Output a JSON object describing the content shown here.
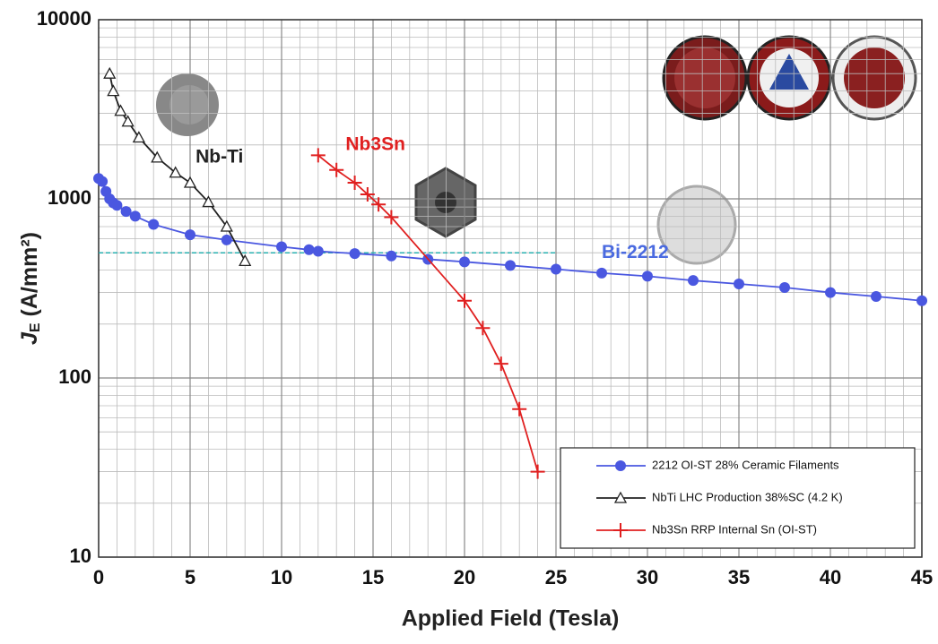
{
  "chart_data": {
    "type": "line",
    "xlabel": "Applied Field (Tesla)",
    "ylabel": {
      "main": "J",
      "sub": "E",
      "rest": " (A/mm²)"
    },
    "xlim": [
      0,
      45
    ],
    "xticks": [
      0,
      5,
      10,
      15,
      20,
      25,
      30,
      35,
      40,
      45
    ],
    "ylim": [
      10,
      10000
    ],
    "yticks": [
      10,
      100,
      1000,
      10000
    ],
    "log_y": true,
    "grid": true,
    "minor_grid": true,
    "legend": "lower right",
    "series": [
      {
        "name": "2212 OI-ST 28% Ceramic Filaments",
        "color": "#4a57e0",
        "marker": "circle",
        "x": [
          0,
          0.2,
          0.4,
          0.6,
          0.8,
          1,
          1.5,
          2,
          3,
          5,
          7,
          10,
          11.5,
          12,
          14,
          16,
          18,
          20,
          22.5,
          25,
          27.5,
          30,
          32.5,
          35,
          37.5,
          40,
          42.5,
          45
        ],
        "values": [
          1300,
          1250,
          1100,
          1000,
          950,
          920,
          850,
          800,
          720,
          630,
          590,
          540,
          520,
          510,
          495,
          480,
          460,
          445,
          425,
          405,
          385,
          370,
          350,
          335,
          320,
          300,
          285,
          270
        ]
      },
      {
        "name": "NbTi LHC Production 38%SC (4.2 K)",
        "color": "#222222",
        "marker": "triangle",
        "x": [
          0.6,
          0.8,
          1.2,
          1.6,
          2.2,
          3.2,
          4.2,
          5,
          6,
          7,
          8
        ],
        "values": [
          5000,
          4000,
          3100,
          2700,
          2200,
          1700,
          1400,
          1230,
          960,
          700,
          450
        ]
      },
      {
        "name": "Nb3Sn RRP Internal Sn (OI-ST)",
        "color": "#e02020",
        "marker": "plus",
        "x": [
          12,
          13,
          14,
          14.7,
          15.3,
          16,
          20,
          21,
          22,
          23,
          24
        ],
        "values": [
          1750,
          1450,
          1230,
          1060,
          930,
          790,
          270,
          190,
          120,
          67,
          30
        ]
      }
    ],
    "reference_line": {
      "y": 500,
      "x": [
        0,
        25
      ],
      "color": "#2ab0b0"
    },
    "annotations": [
      {
        "text": "Nb-Ti",
        "x": 5.3,
        "y": 1700,
        "color": "#222222"
      },
      {
        "text": "Nb3Sn",
        "x": 13.5,
        "y": 2000,
        "color": "#e02020"
      },
      {
        "text": "Bi-2212",
        "x": 27.5,
        "y": 500,
        "color": "#4a6ae0"
      }
    ]
  }
}
